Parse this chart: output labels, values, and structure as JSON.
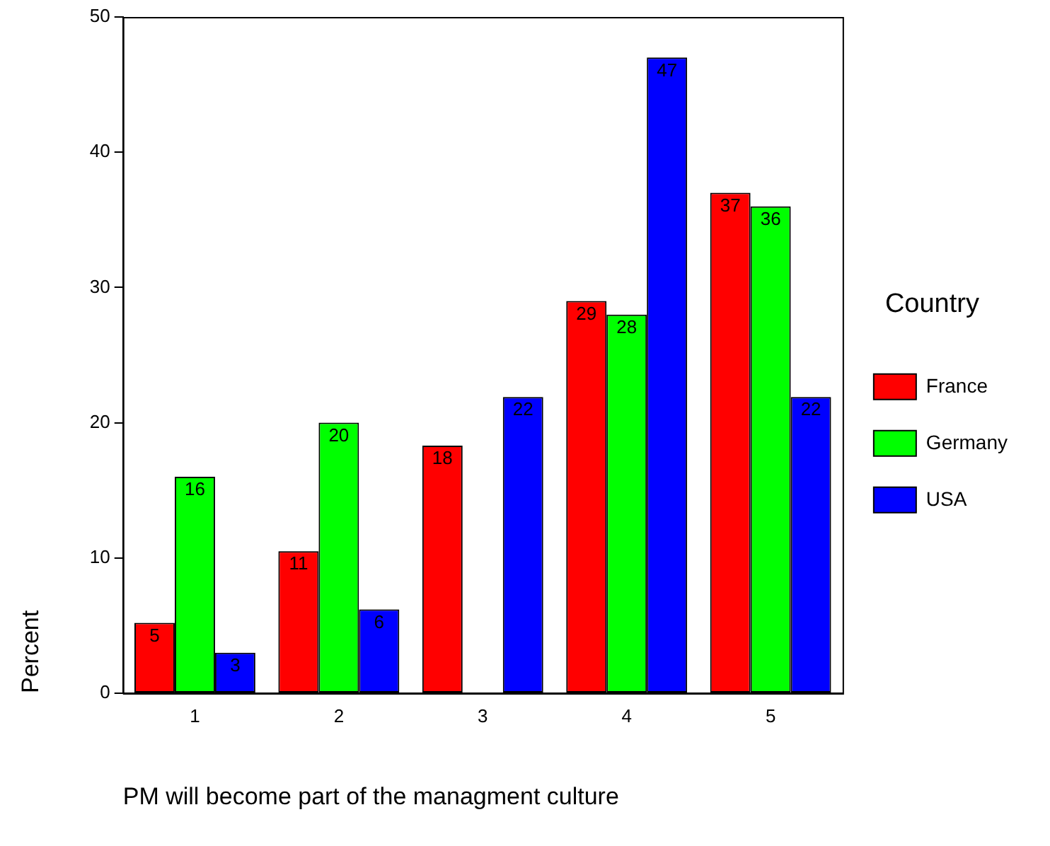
{
  "chart_data": {
    "type": "bar",
    "xlabel": "PM will become part of the managment culture",
    "ylabel": "Percent",
    "legend_title": "Country",
    "categories": [
      "1",
      "2",
      "3",
      "4",
      "5"
    ],
    "series": [
      {
        "name": "France",
        "color": "#ff0000",
        "values": [
          5.2,
          10.5,
          18.3,
          29,
          37
        ],
        "value_labels": [
          "5",
          "11",
          "18",
          "29",
          "37"
        ]
      },
      {
        "name": "Germany",
        "color": "#00ff00",
        "values": [
          16,
          20,
          null,
          28,
          36
        ],
        "value_labels": [
          "16",
          "20",
          null,
          "28",
          "36"
        ]
      },
      {
        "name": "USA",
        "color": "#0000ff",
        "values": [
          3,
          6.2,
          21.9,
          47,
          21.9
        ],
        "value_labels": [
          "3",
          "6",
          "22",
          "47",
          "22"
        ]
      }
    ],
    "ylim": [
      0,
      50
    ],
    "yticks": [
      0,
      10,
      20,
      30,
      40,
      50
    ],
    "grid": false,
    "legend": "right"
  }
}
